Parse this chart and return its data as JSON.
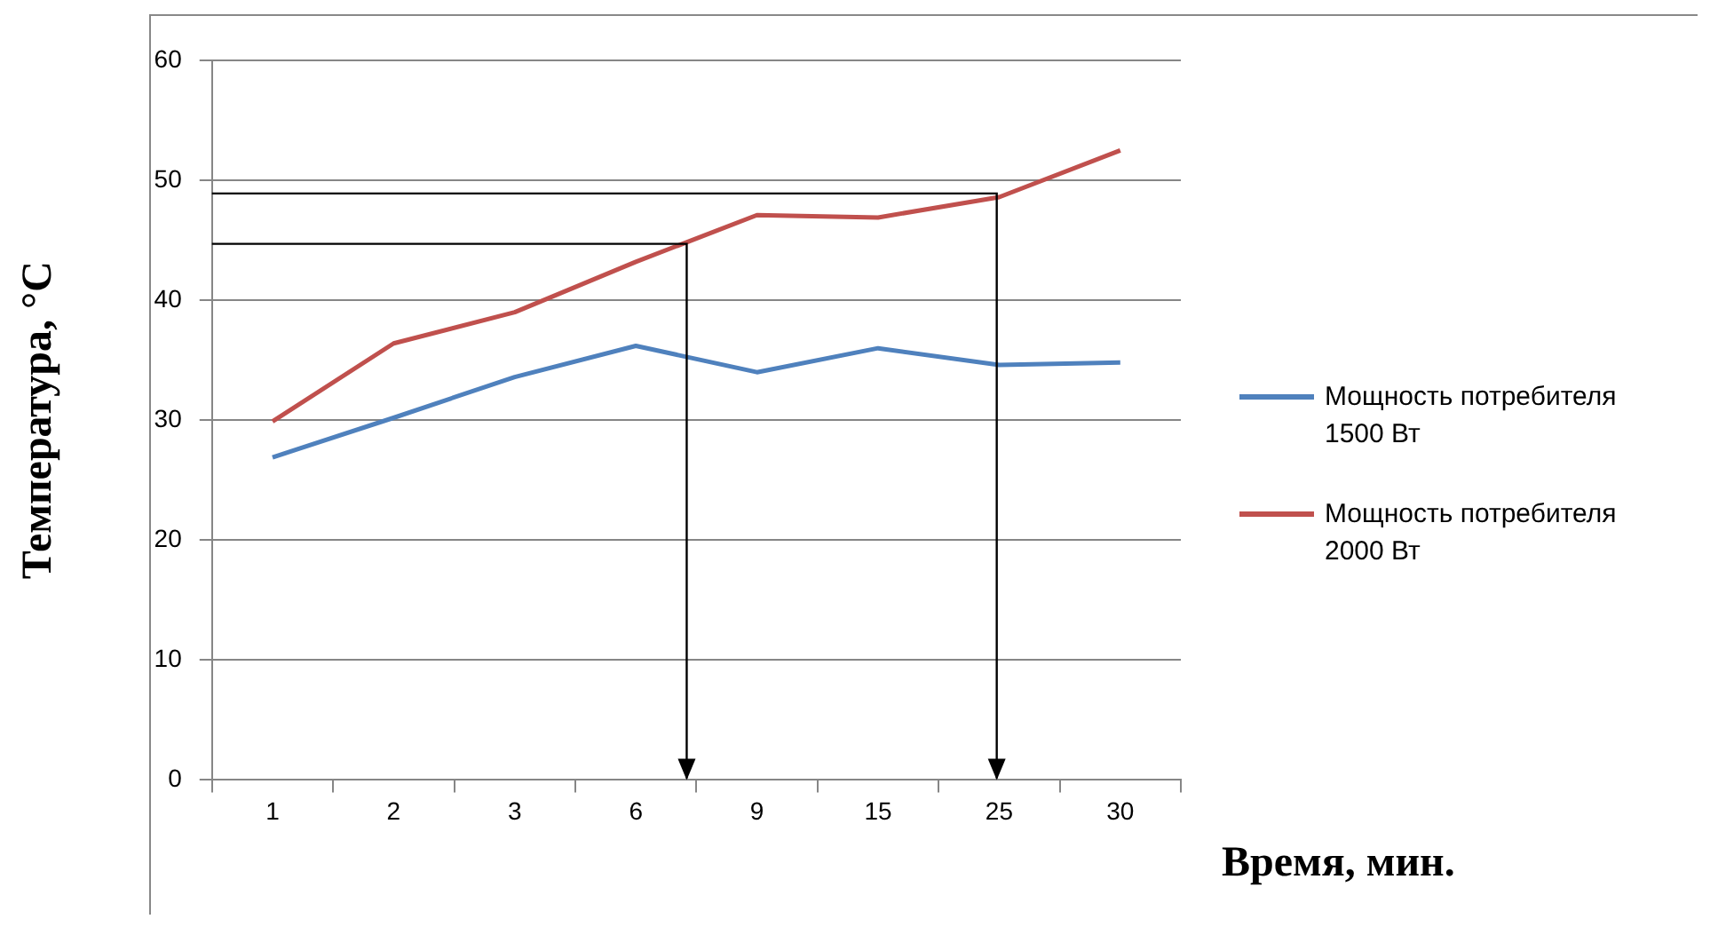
{
  "chart_data": {
    "type": "line",
    "xlabel": "Время, мин.",
    "ylabel": "Температура, °C",
    "categories": [
      "1",
      "2",
      "3",
      "6",
      "9",
      "15",
      "25",
      "30"
    ],
    "series": [
      {
        "name": "Мощность потребителя 1500 Вт",
        "color": "#4f81bd",
        "values": [
          26.9,
          30.2,
          33.6,
          36.2,
          34.0,
          36.0,
          34.6,
          34.8
        ]
      },
      {
        "name": "Мощность потребителя 2000 Вт",
        "color": "#c0504d",
        "values": [
          29.9,
          36.4,
          39.0,
          43.2,
          47.1,
          46.9,
          48.6,
          52.5
        ]
      }
    ],
    "ylim": [
      0,
      60
    ],
    "yticks": [
      0,
      10,
      20,
      30,
      40,
      50,
      60
    ],
    "grid": "y",
    "legend": "right",
    "marker": "none",
    "line_style": "solid"
  }
}
